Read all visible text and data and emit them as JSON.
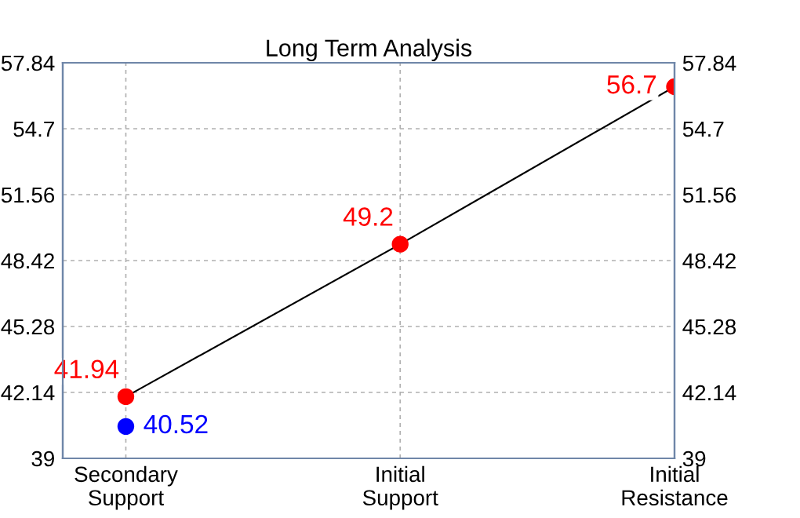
{
  "chart_data": {
    "type": "line",
    "title": "Long Term Analysis",
    "categories": [
      "Secondary\nSupport",
      "Initial\nSupport",
      "Initial\nResistance"
    ],
    "ylim": [
      39,
      57.84
    ],
    "yticks": [
      39,
      42.14,
      45.28,
      48.42,
      51.56,
      54.7,
      57.84
    ],
    "y2lim": [
      39,
      57.84
    ],
    "y2ticks": [
      39,
      42.14,
      45.28,
      48.42,
      51.56,
      54.7,
      57.84
    ],
    "grid": true,
    "series": [
      {
        "color": "#000000",
        "values": [
          41.94,
          49.2,
          56.7
        ]
      },
      {
        "type": "scatter",
        "color": "#ff0000",
        "values": [
          41.94,
          49.2,
          56.7
        ],
        "marker": "circle",
        "value_labels": [
          "41.94",
          "49.2",
          "56.7"
        ]
      },
      {
        "type": "scatter",
        "color": "#0000ff",
        "values": [
          40.52,
          null,
          null
        ],
        "marker": "circle",
        "value_labels": [
          "40.52",
          null,
          null
        ]
      }
    ]
  }
}
